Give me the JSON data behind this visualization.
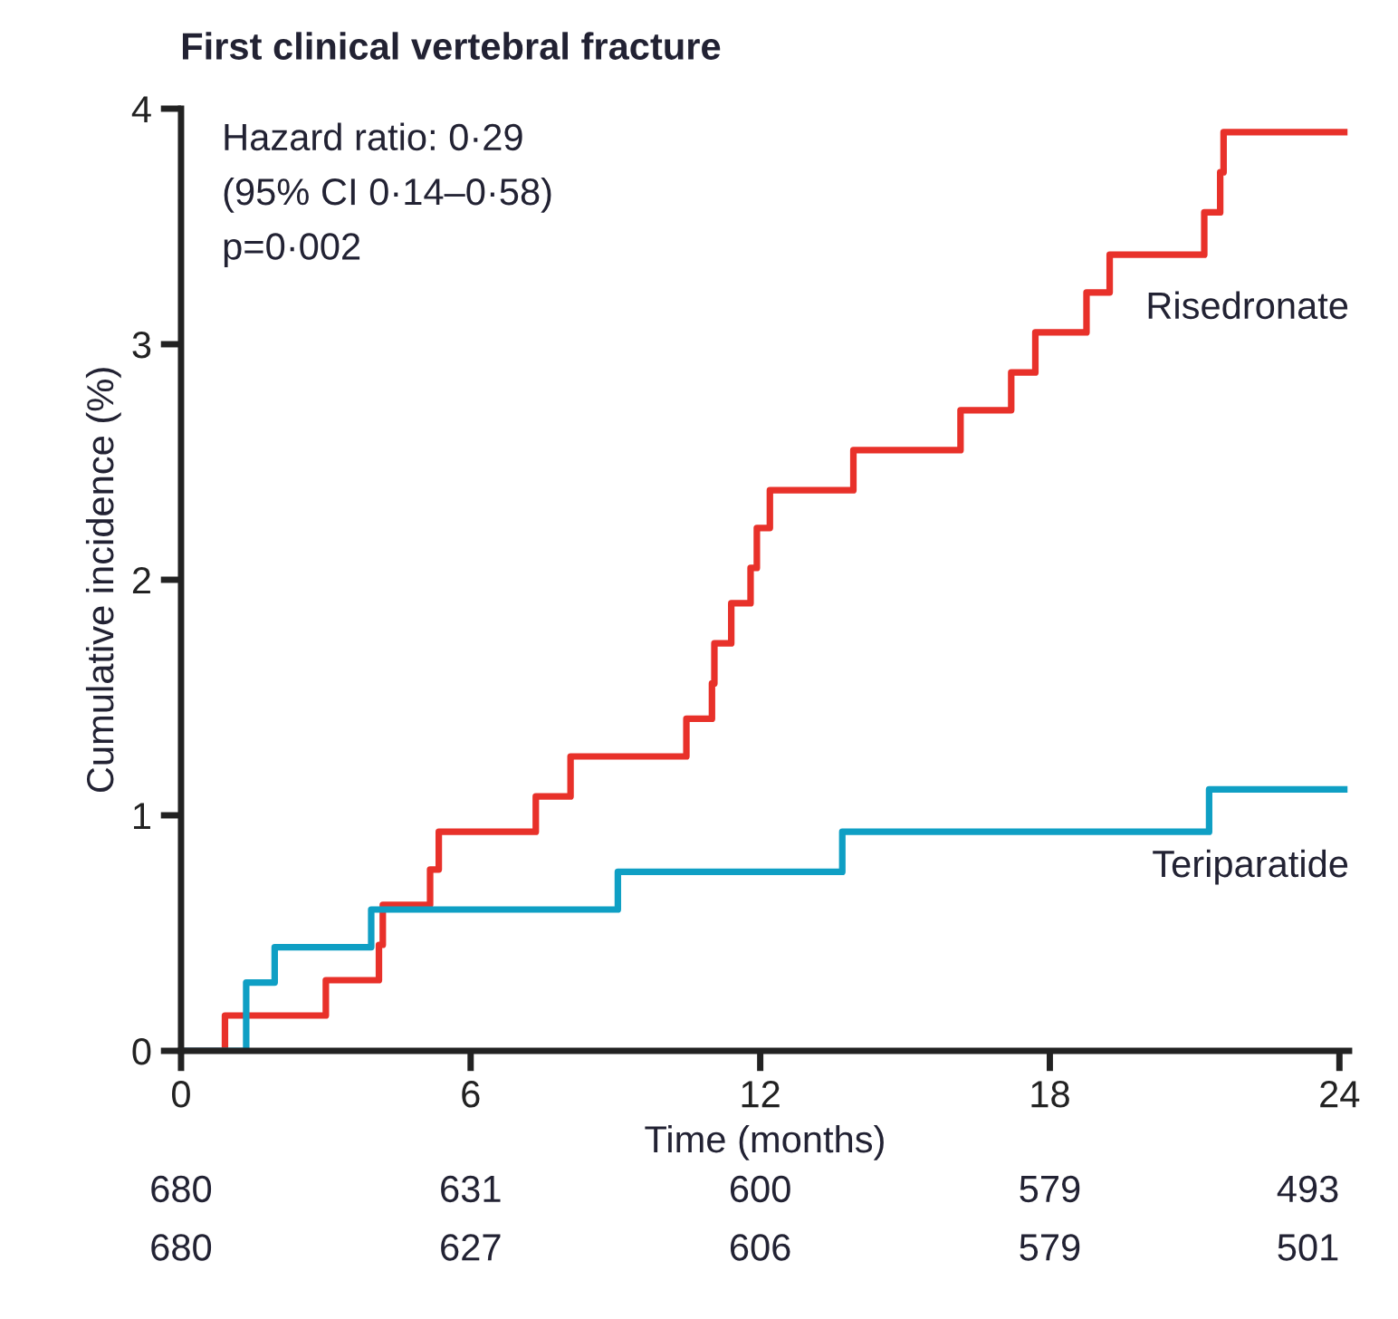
{
  "chart_data": {
    "type": "step",
    "title": "First clinical vertebral fracture",
    "xlabel": "Time (months)",
    "ylabel": "Cumulative incidence (%)",
    "series": [
      {
        "name": "Risedronate",
        "color": "#e8312a",
        "x": [
          0,
          0.91,
          3.0,
          4.1,
          4.18,
          5.16,
          5.34,
          7.35,
          8.07,
          10.47,
          11.0,
          11.05,
          11.4,
          11.8,
          11.93,
          12.2,
          13.93,
          16.15,
          17.2,
          17.7,
          18.76,
          19.24,
          21.2,
          21.53,
          21.6,
          24.1
        ],
        "values": [
          0,
          0.15,
          0.3,
          0.45,
          0.62,
          0.77,
          0.93,
          1.08,
          1.25,
          1.41,
          1.56,
          1.73,
          1.9,
          2.05,
          2.22,
          2.38,
          2.55,
          2.72,
          2.88,
          3.05,
          3.22,
          3.38,
          3.56,
          3.73,
          3.9,
          3.9
        ]
      },
      {
        "name": "Teriparatide",
        "color": "#0f9fc4",
        "x": [
          0,
          1.35,
          1.94,
          3.94,
          9.05,
          13.7,
          21.3,
          24.1
        ],
        "values": [
          0,
          0.29,
          0.44,
          0.6,
          0.76,
          0.93,
          1.11,
          1.11
        ]
      }
    ],
    "xlim": [
      0,
      24.2
    ],
    "ylim": [
      0,
      4
    ],
    "xticks": [
      0,
      6,
      12,
      18,
      24
    ],
    "yticks": [
      0,
      1,
      2,
      3,
      4
    ],
    "grid": false,
    "legend": false,
    "annotations": [
      "Hazard ratio: 0·29",
      "(95% CI 0·14–0·58)",
      "p=0·002",
      "680",
      "631",
      "600",
      "579",
      "493",
      "680",
      "627",
      "606",
      "579",
      "501"
    ]
  }
}
